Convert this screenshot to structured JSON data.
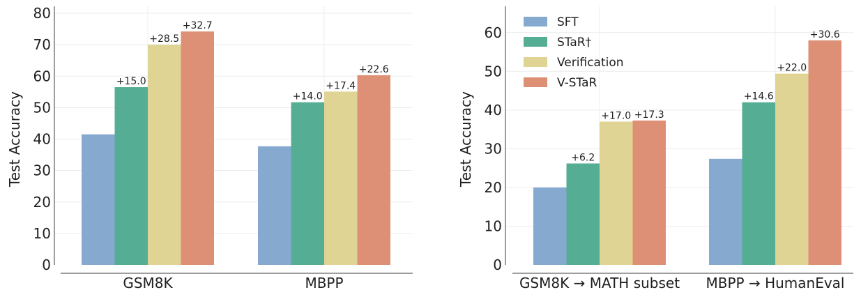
{
  "chart_data": [
    {
      "type": "bar",
      "title": "",
      "xlabel": "",
      "ylabel": "Test Accuracy",
      "ylim": [
        0,
        80
      ],
      "yticks": [
        "0",
        "10",
        "20",
        "30",
        "40",
        "50",
        "60",
        "70",
        "80"
      ],
      "grid": true,
      "categories": [
        "GSM8K",
        "MBPP"
      ],
      "series": [
        {
          "name": "SFT",
          "color": "#86a9d0",
          "values": [
            41.5,
            37.7
          ],
          "labels": [
            "",
            ""
          ]
        },
        {
          "name": "STaR†",
          "color": "#55ad94",
          "values": [
            56.5,
            51.7
          ],
          "labels": [
            "+15.0",
            "+14.0"
          ]
        },
        {
          "name": "Verification",
          "color": "#dfd494",
          "values": [
            70.0,
            55.1
          ],
          "labels": [
            "+28.5",
            "+17.4"
          ]
        },
        {
          "name": "V-STaR",
          "color": "#dd9076",
          "values": [
            74.2,
            60.3
          ],
          "labels": [
            "+32.7",
            "+22.6"
          ]
        }
      ]
    },
    {
      "type": "bar",
      "title": "",
      "xlabel": "",
      "ylabel": "Test Accuracy",
      "ylim": [
        0,
        65
      ],
      "yticks": [
        "0",
        "10",
        "20",
        "30",
        "40",
        "50",
        "60"
      ],
      "grid": true,
      "legend": "top-left",
      "categories": [
        "GSM8K → MATH subset",
        "MBPP → HumanEval"
      ],
      "series": [
        {
          "name": "SFT",
          "color": "#86a9d0",
          "values": [
            20.0,
            27.4
          ],
          "labels": [
            "",
            ""
          ]
        },
        {
          "name": "STaR†",
          "color": "#55ad94",
          "values": [
            26.2,
            42.0
          ],
          "labels": [
            "+6.2",
            "+14.6"
          ]
        },
        {
          "name": "Verification",
          "color": "#dfd494",
          "values": [
            37.0,
            49.4
          ],
          "labels": [
            "+17.0",
            "+22.0"
          ]
        },
        {
          "name": "V-STaR",
          "color": "#dd9076",
          "values": [
            37.3,
            58.0
          ],
          "labels": [
            "+17.3",
            "+30.6"
          ]
        }
      ]
    }
  ]
}
